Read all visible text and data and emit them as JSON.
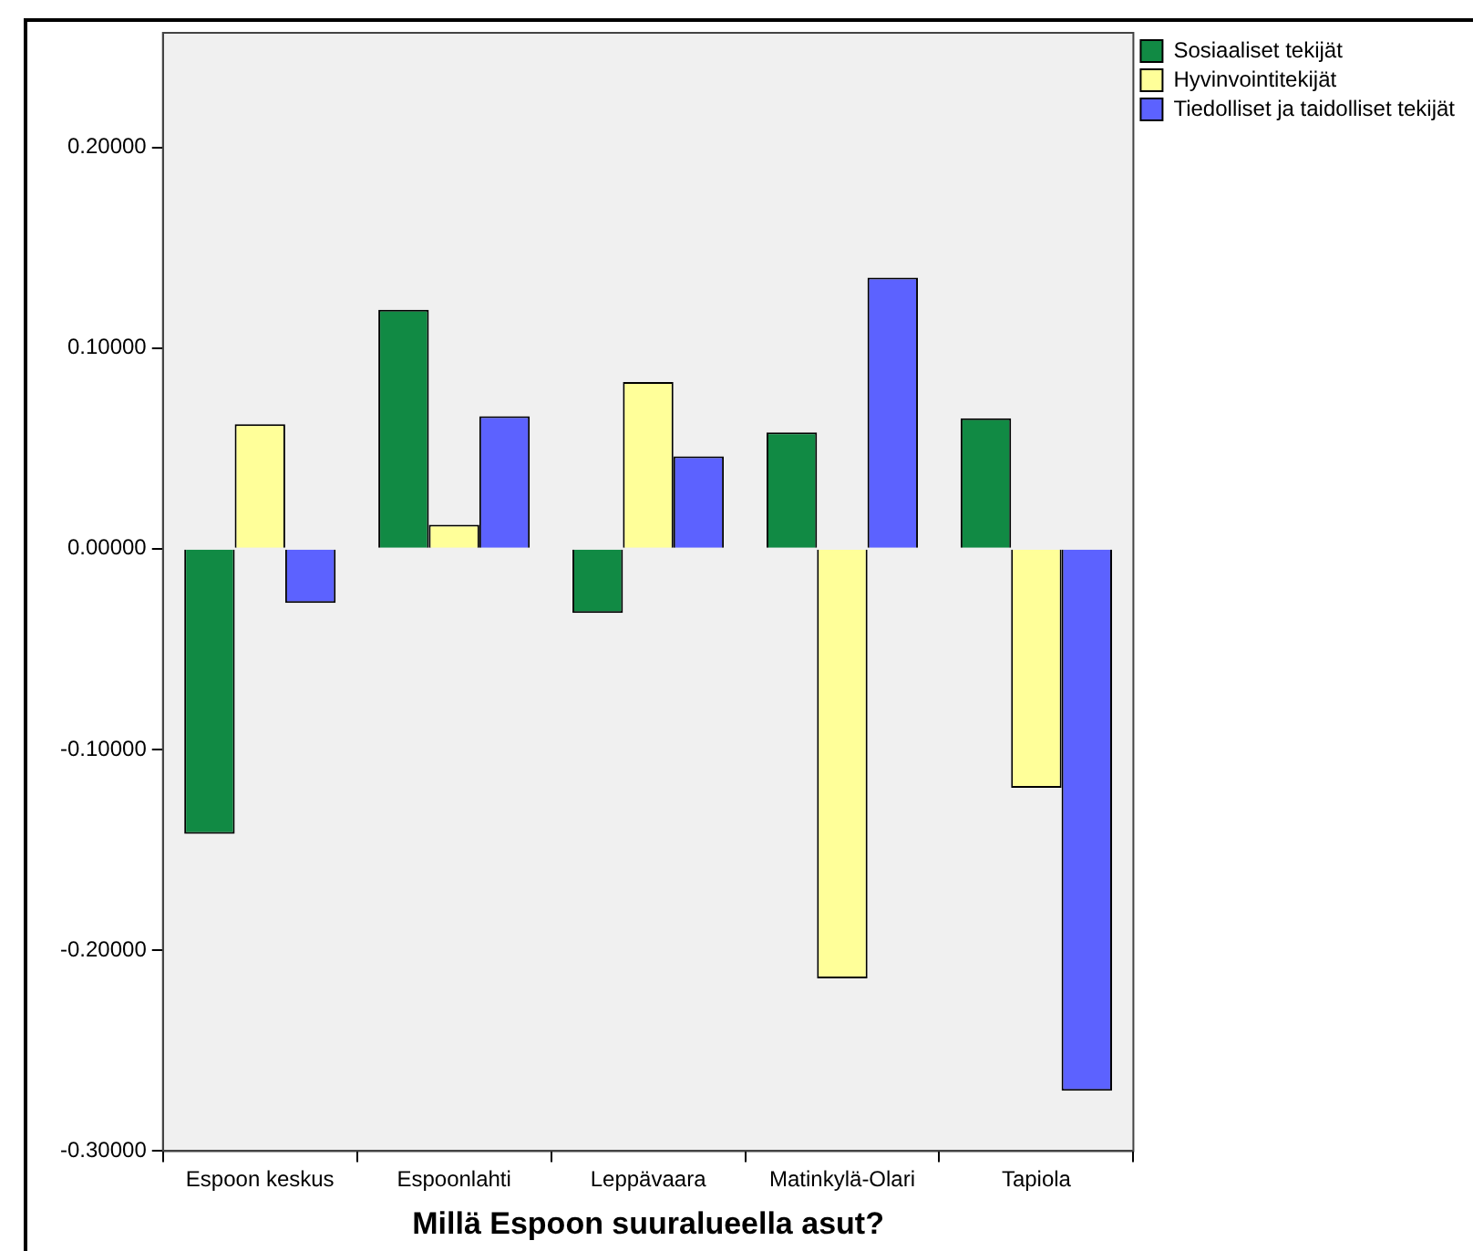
{
  "chart_data": {
    "type": "bar",
    "xlabel": "Millä Espoon suuralueella asut?",
    "categories": [
      "Espoon keskus",
      "Espoonlahti",
      "Leppävaara",
      "Matinkylä-Olari",
      "Tapiola"
    ],
    "series": [
      {
        "name": "Sosiaaliset tekijät",
        "color": "#118a44",
        "values": [
          -0.142,
          0.119,
          -0.032,
          0.058,
          0.065
        ]
      },
      {
        "name": "Hyvinvointitekijät",
        "color": "#ffff99",
        "values": [
          0.062,
          0.012,
          0.083,
          -0.214,
          -0.119
        ]
      },
      {
        "name": "Tiedolliset ja taidolliset tekijät",
        "color": "#5c62ff",
        "values": [
          -0.027,
          0.066,
          0.046,
          0.135,
          -0.27
        ]
      }
    ],
    "ylim": [
      -0.3,
      0.257
    ],
    "yticks": [
      {
        "value": -0.3,
        "label": "-0.30000"
      },
      {
        "value": -0.2,
        "label": "-0.20000"
      },
      {
        "value": -0.1,
        "label": "-0.10000"
      },
      {
        "value": 0,
        "label": "0.00000"
      },
      {
        "value": 0.1,
        "label": "0.10000"
      },
      {
        "value": 0.2,
        "label": "0.20000"
      }
    ],
    "grid": false,
    "legend": "top right"
  }
}
